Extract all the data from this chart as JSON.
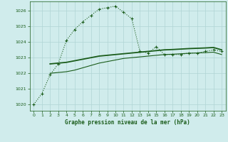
{
  "title": "Graphe pression niveau de la mer (hPa)",
  "background_color": "#d0ecec",
  "grid_color": "#b0d4d4",
  "line_color": "#1a5c1a",
  "x_ticks": [
    0,
    1,
    2,
    3,
    4,
    5,
    6,
    7,
    8,
    9,
    10,
    11,
    12,
    13,
    14,
    15,
    16,
    17,
    18,
    19,
    20,
    21,
    22,
    23
  ],
  "y_ticks": [
    1020,
    1021,
    1022,
    1023,
    1024,
    1025,
    1026
  ],
  "ylim": [
    1019.6,
    1026.6
  ],
  "xlim": [
    -0.5,
    23.5
  ],
  "series1_x": [
    0,
    1,
    2,
    3,
    4,
    5,
    6,
    7,
    8,
    9,
    10,
    11,
    12,
    13,
    14,
    15,
    16,
    17,
    18,
    19,
    20,
    21,
    22,
    23
  ],
  "series1_y": [
    1020.0,
    1020.7,
    1021.9,
    1022.6,
    1024.1,
    1024.8,
    1025.3,
    1025.7,
    1026.1,
    1026.2,
    1026.3,
    1025.9,
    1025.5,
    1023.4,
    1023.3,
    1023.7,
    1023.2,
    1023.2,
    1023.2,
    1023.3,
    1023.3,
    1023.4,
    1023.5,
    1023.4
  ],
  "series2_x": [
    2,
    3,
    4,
    5,
    6,
    7,
    8,
    9,
    10,
    11,
    12,
    13,
    14,
    15,
    16,
    17,
    18,
    19,
    20,
    21,
    22,
    23
  ],
  "series2_y": [
    1022.6,
    1022.65,
    1022.7,
    1022.8,
    1022.9,
    1023.0,
    1023.1,
    1023.15,
    1023.2,
    1023.25,
    1023.3,
    1023.35,
    1023.4,
    1023.45,
    1023.5,
    1023.52,
    1023.55,
    1023.58,
    1023.6,
    1023.62,
    1023.65,
    1023.5
  ],
  "series3_x": [
    2,
    3,
    4,
    5,
    6,
    7,
    8,
    9,
    10,
    11,
    12,
    13,
    14,
    15,
    16,
    17,
    18,
    19,
    20,
    21,
    22,
    23
  ],
  "series3_y": [
    1022.0,
    1022.05,
    1022.1,
    1022.2,
    1022.35,
    1022.5,
    1022.65,
    1022.75,
    1022.85,
    1022.95,
    1023.0,
    1023.05,
    1023.1,
    1023.15,
    1023.2,
    1023.22,
    1023.25,
    1023.28,
    1023.3,
    1023.32,
    1023.35,
    1023.2
  ]
}
